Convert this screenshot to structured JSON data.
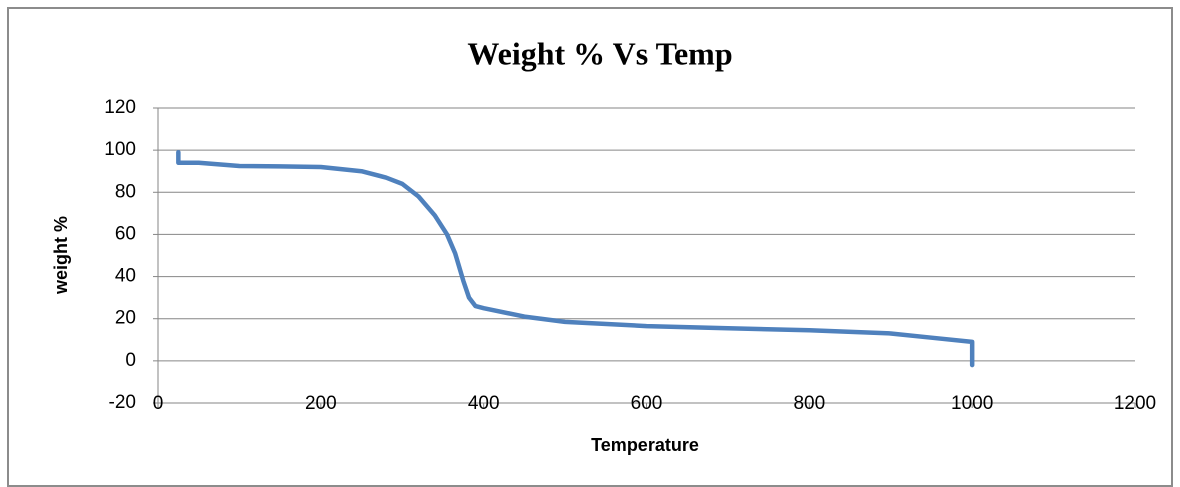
{
  "chart_data": {
    "type": "line",
    "title": "Weight % Vs Temp",
    "x_label": "Temperature",
    "y_label": "weight %",
    "x": [
      25,
      25,
      50,
      100,
      150,
      200,
      250,
      280,
      300,
      320,
      340,
      355,
      365,
      375,
      382,
      390,
      400,
      450,
      500,
      600,
      700,
      800,
      900,
      950,
      1000,
      1000
    ],
    "series": [
      {
        "name": "weight %",
        "color": "#4f81bd",
        "values": [
          99,
          94,
          94,
          92.5,
          92.3,
          92,
          90,
          87,
          84,
          78,
          69,
          60,
          51,
          38,
          30,
          26,
          25,
          21,
          18.5,
          16.5,
          15.5,
          14.5,
          13,
          11,
          9,
          -2
        ]
      }
    ],
    "xlim": [
      0,
      1200
    ],
    "xticks": [
      0,
      200,
      400,
      600,
      800,
      1000,
      1200
    ],
    "ylim": [
      -20,
      120
    ],
    "yticks": [
      -20,
      0,
      20,
      40,
      60,
      80,
      100,
      120
    ],
    "grid": true
  }
}
